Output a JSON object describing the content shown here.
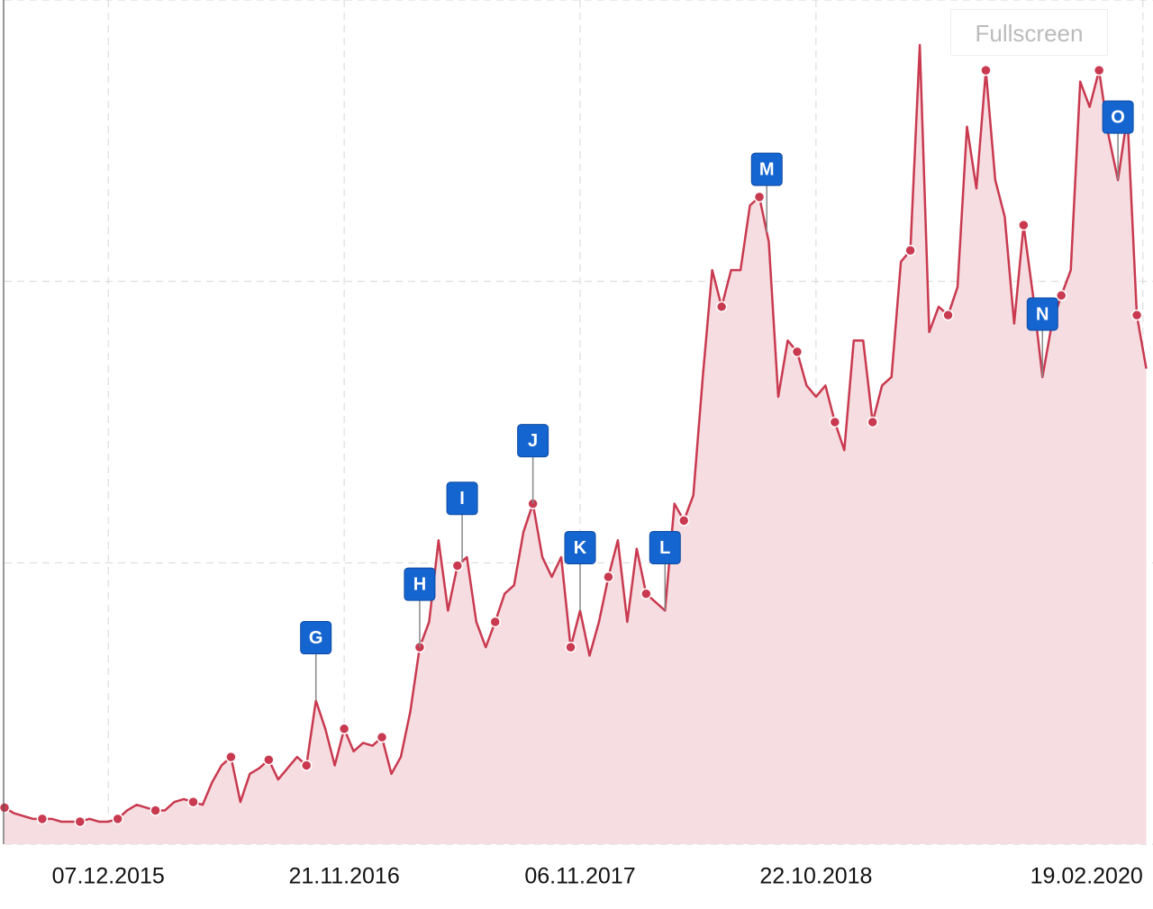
{
  "chart_data": {
    "type": "line",
    "x": [
      "2015-07-06",
      "2015-07-20",
      "2015-08-03",
      "2015-08-17",
      "2015-08-31",
      "2015-09-14",
      "2015-09-28",
      "2015-10-12",
      "2015-10-26",
      "2015-11-09",
      "2015-11-23",
      "2015-12-07",
      "2015-12-21",
      "2016-01-04",
      "2016-01-18",
      "2016-02-01",
      "2016-02-15",
      "2016-02-29",
      "2016-03-14",
      "2016-03-28",
      "2016-04-11",
      "2016-04-25",
      "2016-05-09",
      "2016-05-23",
      "2016-06-06",
      "2016-06-20",
      "2016-07-04",
      "2016-07-18",
      "2016-08-01",
      "2016-08-15",
      "2016-08-29",
      "2016-09-12",
      "2016-09-26",
      "2016-10-10",
      "2016-10-24",
      "2016-11-07",
      "2016-11-21",
      "2016-12-05",
      "2016-12-19",
      "2017-01-02",
      "2017-01-16",
      "2017-01-30",
      "2017-02-13",
      "2017-02-27",
      "2017-03-13",
      "2017-03-27",
      "2017-04-10",
      "2017-04-24",
      "2017-05-08",
      "2017-05-22",
      "2017-06-05",
      "2017-06-19",
      "2017-07-03",
      "2017-07-17",
      "2017-07-31",
      "2017-08-14",
      "2017-08-28",
      "2017-09-11",
      "2017-09-25",
      "2017-10-09",
      "2017-10-23",
      "2017-11-06",
      "2017-11-20",
      "2017-12-04",
      "2017-12-18",
      "2018-01-01",
      "2018-01-15",
      "2018-01-29",
      "2018-02-12",
      "2018-02-26",
      "2018-03-12",
      "2018-03-26",
      "2018-04-09",
      "2018-04-23",
      "2018-05-07",
      "2018-05-21",
      "2018-06-04",
      "2018-06-18",
      "2018-07-02",
      "2018-07-16",
      "2018-07-30",
      "2018-08-13",
      "2018-08-27",
      "2018-09-10",
      "2018-09-24",
      "2018-10-08",
      "2018-10-22",
      "2018-11-05",
      "2018-11-19",
      "2018-12-03",
      "2018-12-17",
      "2018-12-31",
      "2019-01-14",
      "2019-01-28",
      "2019-02-11",
      "2019-02-25",
      "2019-03-11",
      "2019-03-25",
      "2019-04-08",
      "2019-04-22",
      "2019-05-06",
      "2019-05-20",
      "2019-06-03",
      "2019-06-17",
      "2019-07-01",
      "2019-07-15",
      "2019-07-29",
      "2019-08-12",
      "2019-08-26",
      "2019-09-09",
      "2019-09-23",
      "2019-10-07",
      "2019-10-21",
      "2019-11-04",
      "2019-11-18",
      "2019-12-02",
      "2019-12-16",
      "2019-12-30",
      "2020-01-13",
      "2020-01-27",
      "2020-02-10",
      "2020-02-24"
    ],
    "series": [
      {
        "color": "#c9394f",
        "area_color": "#f6dde1",
        "values": [
          13,
          11,
          10,
          9,
          9,
          9,
          8,
          8,
          8,
          9,
          8,
          8,
          9,
          12,
          14,
          13,
          12,
          12,
          15,
          16,
          15,
          14,
          22,
          28,
          31,
          15,
          25,
          27,
          30,
          23,
          27,
          31,
          28,
          51,
          41,
          28,
          41,
          33,
          36,
          35,
          38,
          25,
          31,
          47,
          70,
          79,
          108,
          83,
          99,
          102,
          79,
          70,
          79,
          89,
          92,
          111,
          121,
          102,
          95,
          102,
          70,
          83,
          67,
          79,
          95,
          108,
          79,
          105,
          89,
          86,
          83,
          121,
          115,
          124,
          166,
          204,
          191,
          204,
          204,
          227,
          230,
          214,
          159,
          179,
          175,
          163,
          159,
          163,
          150,
          140,
          179,
          179,
          150,
          163,
          166,
          207,
          211,
          284,
          182,
          191,
          188,
          198,
          255,
          233,
          275,
          236,
          223,
          185,
          220,
          195,
          166,
          185,
          195,
          204,
          271,
          262,
          275,
          252,
          236,
          259,
          188,
          169
        ]
      }
    ],
    "xlim": [
      "2015-07-06",
      "2020-03-05"
    ],
    "xticks": [
      {
        "value": "2015-12-07",
        "label": "07.12.2015"
      },
      {
        "value": "2016-11-21",
        "label": "21.11.2016"
      },
      {
        "value": "2017-11-06",
        "label": "06.11.2017"
      },
      {
        "value": "2018-10-22",
        "label": "22.10.2018"
      },
      {
        "value": "2020-02-19",
        "label": "19.02.2020"
      }
    ],
    "ylim": [
      0,
      300
    ],
    "yticks": [
      0,
      100,
      200,
      300
    ],
    "grid": true,
    "annotations": [
      {
        "label": "G",
        "x": "2016-10-10"
      },
      {
        "label": "H",
        "x": "2017-03-13"
      },
      {
        "label": "I",
        "x": "2017-05-15"
      },
      {
        "label": "J",
        "x": "2017-08-28"
      },
      {
        "label": "K",
        "x": "2017-11-06"
      },
      {
        "label": "L",
        "x": "2018-03-12"
      },
      {
        "label": "M",
        "x": "2018-08-10"
      },
      {
        "label": "N",
        "x": "2019-09-23"
      },
      {
        "label": "O",
        "x": "2020-01-13"
      }
    ],
    "annotation_color": "#1565d0"
  },
  "controls": {
    "fullscreen": "Fullscreen"
  }
}
